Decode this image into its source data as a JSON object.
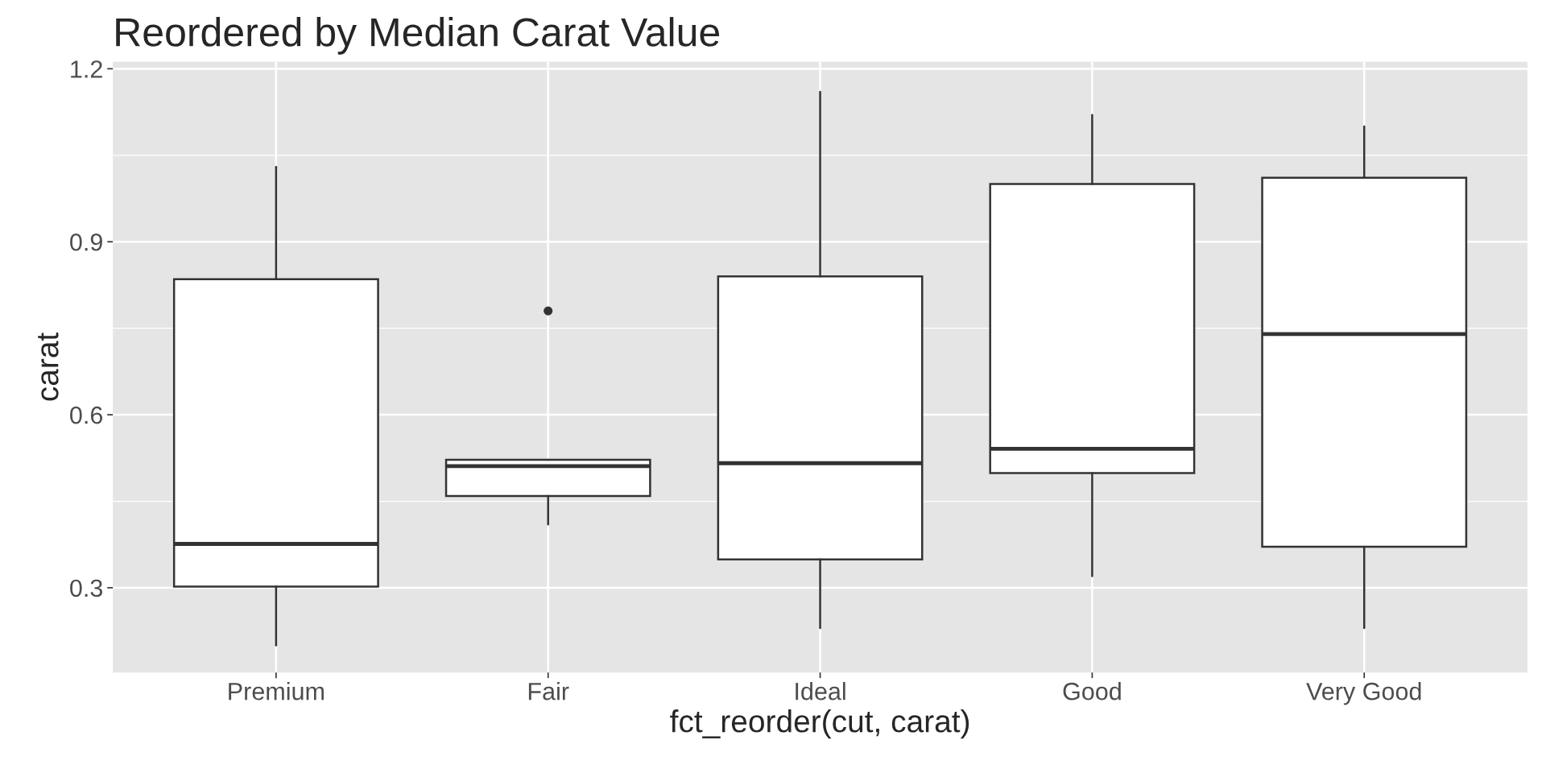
{
  "chart_data": {
    "type": "box",
    "title": "Reordered by Median Carat Value",
    "xlabel": "fct_reorder(cut, carat)",
    "ylabel": "carat",
    "categories": [
      "Premium",
      "Fair",
      "Ideal",
      "Good",
      "Very Good"
    ],
    "boxes": [
      {
        "low": 0.2,
        "q1": 0.302,
        "median": 0.376,
        "q3": 0.835,
        "high": 1.03
      },
      {
        "low": 0.41,
        "q1": 0.459,
        "median": 0.511,
        "q3": 0.522,
        "high": 0.522,
        "outliers": [
          0.78
        ]
      },
      {
        "low": 0.23,
        "q1": 0.349,
        "median": 0.516,
        "q3": 0.84,
        "high": 1.16
      },
      {
        "low": 0.32,
        "q1": 0.499,
        "median": 0.541,
        "q3": 1.0,
        "high": 1.12
      },
      {
        "low": 0.23,
        "q1": 0.371,
        "median": 0.74,
        "q3": 1.011,
        "high": 1.1
      }
    ],
    "ylim": [
      0.153,
      1.212
    ],
    "yticks": [
      0.3,
      0.6,
      0.9,
      1.2
    ],
    "grid": true
  }
}
